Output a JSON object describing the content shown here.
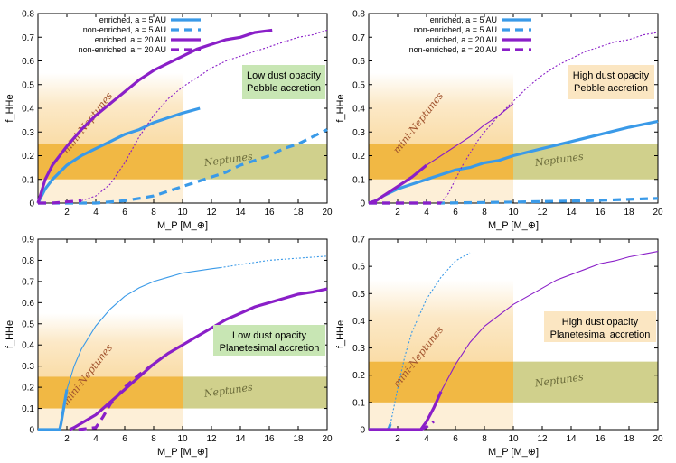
{
  "chart_data": [
    {
      "type": "line",
      "panel": "top-left",
      "xlabel": "M_P [M_⊕]",
      "ylabel": "f_HHe",
      "xlim": [
        0,
        20
      ],
      "ylim": [
        0,
        0.8
      ],
      "xticks": [
        "2",
        "4",
        "6",
        "8",
        "10",
        "12",
        "14",
        "16",
        "18",
        "20"
      ],
      "yticks": [
        "0",
        "0.1",
        "0.2",
        "0.3",
        "0.4",
        "0.5",
        "0.6",
        "0.7",
        "0.8"
      ],
      "annotation": [
        "Low dust opacity",
        "Pebble accretion"
      ],
      "annotation_bg": "#c8e6b4",
      "legend_position": "top-left",
      "regions": [
        {
          "label": "mini-Neptunes",
          "color": "#a0522d"
        },
        {
          "label": "Neptunes",
          "color": "#6b6b3a"
        }
      ],
      "series": [
        {
          "name": "enriched, a = 5 AU",
          "color": "#3a9ae8",
          "style": "thick",
          "x": [
            0,
            0.5,
            1,
            2,
            3,
            4,
            5,
            6,
            7,
            8,
            9,
            10,
            11.2
          ],
          "y": [
            0,
            0.06,
            0.1,
            0.16,
            0.2,
            0.23,
            0.26,
            0.29,
            0.31,
            0.34,
            0.36,
            0.38,
            0.4
          ]
        },
        {
          "name": "non-enriched, a = 5 AU",
          "color": "#3a9ae8",
          "style": "dashed",
          "x": [
            0,
            4,
            5,
            6,
            7,
            8,
            9,
            10,
            11,
            12,
            13,
            14,
            15,
            16,
            17,
            18,
            19,
            20
          ],
          "y": [
            0,
            0,
            0.005,
            0.01,
            0.02,
            0.03,
            0.05,
            0.07,
            0.09,
            0.11,
            0.13,
            0.16,
            0.18,
            0.2,
            0.23,
            0.25,
            0.28,
            0.31
          ]
        },
        {
          "name": "enriched, a = 20 AU",
          "color": "#8a1fc8",
          "style": "thick",
          "x": [
            0,
            0.5,
            1,
            2,
            3,
            4,
            5,
            6,
            7,
            8,
            9,
            10,
            11,
            12,
            13,
            14,
            15,
            16.2
          ],
          "y": [
            0,
            0.1,
            0.16,
            0.24,
            0.31,
            0.37,
            0.42,
            0.47,
            0.52,
            0.56,
            0.59,
            0.62,
            0.65,
            0.67,
            0.69,
            0.7,
            0.72,
            0.73
          ]
        },
        {
          "name": "non-enriched, a = 20 AU",
          "color": "#8a1fc8",
          "style": "dashed",
          "x": [
            0,
            1,
            2,
            3
          ],
          "y": [
            0,
            0,
            0.005,
            0.01
          ]
        },
        {
          "name": "",
          "color": "#8a1fc8",
          "style": "dotted",
          "x": [
            3,
            4,
            5,
            6,
            7,
            8,
            9,
            10,
            11,
            12,
            13,
            14,
            15,
            16,
            17,
            18,
            19,
            20
          ],
          "y": [
            0.01,
            0.03,
            0.08,
            0.17,
            0.28,
            0.37,
            0.44,
            0.49,
            0.53,
            0.57,
            0.6,
            0.62,
            0.64,
            0.66,
            0.68,
            0.7,
            0.71,
            0.73
          ]
        }
      ]
    },
    {
      "type": "line",
      "panel": "top-right",
      "xlabel": "M_P [M_⊕]",
      "ylabel": "f_HHe",
      "xlim": [
        0,
        20
      ],
      "ylim": [
        0,
        0.8
      ],
      "xticks": [
        "2",
        "4",
        "6",
        "8",
        "10",
        "12",
        "14",
        "16",
        "18",
        "20"
      ],
      "yticks": [
        "0",
        "0.1",
        "0.2",
        "0.3",
        "0.4",
        "0.5",
        "0.6",
        "0.7",
        "0.8"
      ],
      "annotation": [
        "High dust opacity",
        "Pebble accretion"
      ],
      "annotation_bg": "#fbe6c2",
      "legend_position": "top-left",
      "regions": [
        {
          "label": "mini-Neptunes",
          "color": "#a0522d"
        },
        {
          "label": "Neptunes",
          "color": "#6b6b3a"
        }
      ],
      "series": [
        {
          "name": "enriched, a = 5 AU",
          "color": "#3a9ae8",
          "style": "thick",
          "x": [
            0,
            0.5,
            1,
            2,
            3,
            4,
            5,
            6,
            7,
            8,
            9,
            10,
            12,
            14,
            16,
            18,
            20
          ],
          "y": [
            0,
            0.01,
            0.03,
            0.06,
            0.08,
            0.1,
            0.12,
            0.14,
            0.15,
            0.17,
            0.18,
            0.2,
            0.23,
            0.26,
            0.29,
            0.32,
            0.345
          ]
        },
        {
          "name": "non-enriched, a = 5 AU",
          "color": "#3a9ae8",
          "style": "dashed",
          "x": [
            0,
            5,
            10,
            15,
            20
          ],
          "y": [
            0,
            0,
            0.004,
            0.01,
            0.02
          ]
        },
        {
          "name": "enriched, a = 20 AU",
          "color": "#8a1fc8",
          "style": "thick",
          "x": [
            0,
            0.5,
            1,
            2,
            3,
            4
          ],
          "y": [
            0,
            0.01,
            0.03,
            0.07,
            0.11,
            0.16
          ]
        },
        {
          "name": "",
          "color": "#8a1fc8",
          "style": "thin",
          "x": [
            4,
            5,
            6,
            7,
            8,
            9,
            10
          ],
          "y": [
            0.16,
            0.2,
            0.24,
            0.28,
            0.33,
            0.37,
            0.42
          ]
        },
        {
          "name": "non-enriched, a = 20 AU",
          "color": "#8a1fc8",
          "style": "dashed",
          "x": [
            0,
            5
          ],
          "y": [
            0,
            0
          ]
        },
        {
          "name": "",
          "color": "#8a1fc8",
          "style": "dotted",
          "x": [
            5,
            5.5,
            6,
            6.5,
            7,
            7.5,
            8,
            9,
            10,
            11,
            12,
            13,
            14,
            15,
            16,
            17,
            18,
            19,
            20
          ],
          "y": [
            0,
            0.04,
            0.1,
            0.16,
            0.21,
            0.26,
            0.3,
            0.37,
            0.43,
            0.49,
            0.54,
            0.58,
            0.61,
            0.64,
            0.66,
            0.68,
            0.69,
            0.71,
            0.72
          ]
        }
      ]
    },
    {
      "type": "line",
      "panel": "bottom-left",
      "xlabel": "M_P [M_⊕]",
      "ylabel": "f_HHe",
      "xlim": [
        0,
        20
      ],
      "ylim": [
        0,
        0.9
      ],
      "xticks": [
        "2",
        "4",
        "6",
        "8",
        "10",
        "12",
        "14",
        "16",
        "18",
        "20"
      ],
      "yticks": [
        "0",
        "0.1",
        "0.2",
        "0.3",
        "0.4",
        "0.5",
        "0.6",
        "0.7",
        "0.8",
        "0.9"
      ],
      "annotation": [
        "Low dust opacity",
        "Planetesimal accretion"
      ],
      "annotation_bg": "#c8e6b4",
      "legend_position": "none",
      "regions": [
        {
          "label": "mini-Neptunes",
          "color": "#a0522d"
        },
        {
          "label": "Neptunes",
          "color": "#6b6b3a"
        }
      ],
      "series": [
        {
          "name": "enriched, a = 5 AU",
          "color": "#3a9ae8",
          "style": "thick",
          "x": [
            0,
            1.5,
            1.6,
            1.8,
            2
          ],
          "y": [
            0,
            0,
            0.03,
            0.11,
            0.19
          ]
        },
        {
          "name": "",
          "color": "#3a9ae8",
          "style": "thin",
          "x": [
            2,
            2.5,
            3,
            4,
            5,
            6,
            7,
            8,
            9,
            10,
            11,
            12,
            12.6
          ],
          "y": [
            0.19,
            0.3,
            0.38,
            0.49,
            0.57,
            0.63,
            0.67,
            0.7,
            0.72,
            0.74,
            0.75,
            0.76,
            0.765
          ]
        },
        {
          "name": "non-enriched, a = 5 AU",
          "color": "#3a9ae8",
          "style": "dotted",
          "x": [
            12.6,
            14,
            16,
            18,
            20
          ],
          "y": [
            0.765,
            0.78,
            0.8,
            0.81,
            0.82
          ]
        },
        {
          "name": "enriched, a = 20 AU",
          "color": "#8a1fc8",
          "style": "thick",
          "x": [
            2.2,
            2.5,
            3,
            4,
            5,
            6,
            7,
            8,
            9,
            10,
            11,
            12,
            13,
            14,
            15,
            16,
            17,
            18,
            19,
            20
          ],
          "y": [
            0,
            0.01,
            0.03,
            0.07,
            0.13,
            0.19,
            0.25,
            0.31,
            0.36,
            0.4,
            0.44,
            0.48,
            0.52,
            0.55,
            0.58,
            0.6,
            0.62,
            0.64,
            0.65,
            0.665
          ]
        },
        {
          "name": "non-enriched, a = 20 AU",
          "color": "#8a1fc8",
          "style": "dashed",
          "x": [
            2.8,
            4,
            4.5,
            5,
            6,
            7,
            8
          ],
          "y": [
            0,
            0.01,
            0.06,
            0.12,
            0.2,
            0.26,
            0.31
          ]
        }
      ]
    },
    {
      "type": "line",
      "panel": "bottom-right",
      "xlabel": "M_P [M_⊕]",
      "ylabel": "f_HHe",
      "xlim": [
        0,
        20
      ],
      "ylim": [
        0,
        0.7
      ],
      "xticks": [
        "2",
        "4",
        "6",
        "8",
        "10",
        "12",
        "14",
        "16",
        "18",
        "20"
      ],
      "yticks": [
        "0",
        "0.1",
        "0.2",
        "0.3",
        "0.4",
        "0.5",
        "0.6",
        "0.7"
      ],
      "annotation": [
        "High dust opacity",
        "Planetesimal accretion"
      ],
      "annotation_bg": "#fbe6c2",
      "legend_position": "none",
      "regions": [
        {
          "label": "mini-Neptunes",
          "color": "#a0522d"
        },
        {
          "label": "Neptunes",
          "color": "#6b6b3a"
        }
      ],
      "series": [
        {
          "name": "enriched, a = 5 AU",
          "color": "#3a9ae8",
          "style": "thick",
          "x": [
            0,
            1.3,
            1.4,
            1.5
          ],
          "y": [
            0,
            0,
            0.005,
            0.02
          ]
        },
        {
          "name": "non-enriched, a = 5 AU",
          "color": "#3a9ae8",
          "style": "dotted",
          "x": [
            1.5,
            2,
            2.5,
            3,
            4,
            5,
            6,
            7
          ],
          "y": [
            0.02,
            0.15,
            0.27,
            0.36,
            0.48,
            0.56,
            0.62,
            0.65
          ]
        },
        {
          "name": "enriched, a = 20 AU",
          "color": "#8a1fc8",
          "style": "thick",
          "x": [
            0,
            3.6,
            4,
            4.5,
            5
          ],
          "y": [
            0,
            0,
            0.03,
            0.08,
            0.14
          ]
        },
        {
          "name": "",
          "color": "#8a1fc8",
          "style": "thin",
          "x": [
            5,
            6,
            7,
            8,
            9,
            10,
            11,
            12,
            13,
            14,
            15,
            16,
            17,
            18,
            19,
            20
          ],
          "y": [
            0.14,
            0.24,
            0.32,
            0.38,
            0.42,
            0.46,
            0.49,
            0.52,
            0.55,
            0.57,
            0.59,
            0.61,
            0.62,
            0.635,
            0.645,
            0.655
          ]
        },
        {
          "name": "non-enriched, a = 20 AU",
          "color": "#8a1fc8",
          "style": "dashed",
          "x": [
            3.6,
            4,
            4.5
          ],
          "y": [
            0,
            0.01,
            0.03
          ]
        }
      ]
    }
  ],
  "legend_entries": [
    {
      "label": "enriched, a = 5 AU",
      "color": "#3a9ae8",
      "style": "thick"
    },
    {
      "label": "non-enriched, a = 5 AU",
      "color": "#3a9ae8",
      "style": "dashed"
    },
    {
      "label": "enriched, a = 20 AU",
      "color": "#8a1fc8",
      "style": "thick"
    },
    {
      "label": "non-enriched, a = 20 AU",
      "color": "#8a1fc8",
      "style": "dashed"
    }
  ],
  "colors": {
    "blue": "#3a9ae8",
    "purple": "#8a1fc8",
    "mini_neptune_fill": "#f0b030",
    "neptune_fill": "#c8c878"
  }
}
